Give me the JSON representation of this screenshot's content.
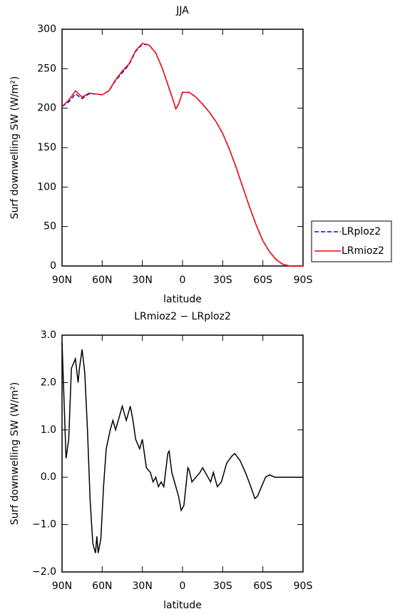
{
  "chart_data": [
    {
      "type": "line",
      "title": "JJA",
      "x_label": "latitude",
      "y_label": "Surf downwelling SW (W/m²)",
      "x": [
        90,
        85,
        80,
        75,
        70,
        65,
        60,
        55,
        50,
        45,
        40,
        35,
        30,
        25,
        20,
        15,
        10,
        7,
        5,
        3,
        0,
        -5,
        -10,
        -15,
        -20,
        -25,
        -30,
        -35,
        -40,
        -45,
        -50,
        -55,
        -60,
        -65,
        -70,
        -75,
        -80,
        -85,
        -90
      ],
      "series": [
        {
          "name": "LRploz2",
          "color": "#0000ff",
          "dashed": true,
          "values": [
            202,
            208,
            218,
            212,
            218,
            218,
            217,
            222,
            235,
            245,
            255,
            272,
            281,
            280,
            270,
            250,
            225,
            210,
            199,
            205,
            220,
            220,
            214,
            205,
            195,
            183,
            168,
            148,
            125,
            100,
            75,
            52,
            32,
            18,
            8,
            2,
            0,
            0,
            0
          ]
        },
        {
          "name": "LRmioz2",
          "color": "#ff0000",
          "dashed": false,
          "values": [
            202,
            210,
            222,
            214,
            219,
            218,
            217,
            222,
            236,
            247,
            256,
            273,
            282,
            280,
            270,
            250,
            225,
            210,
            199,
            205,
            220,
            220,
            214,
            205,
            195,
            183,
            168,
            148,
            125,
            100,
            75,
            52,
            32,
            18,
            8,
            2,
            0,
            0,
            0
          ]
        }
      ],
      "xlim": [
        90,
        -90
      ],
      "xticks": [
        {
          "value": 90,
          "label": "90N"
        },
        {
          "value": 60,
          "label": "60N"
        },
        {
          "value": 30,
          "label": "30N"
        },
        0,
        {
          "value": -30,
          "label": "30S"
        },
        {
          "value": -60,
          "label": "60S"
        },
        {
          "value": -90,
          "label": "90S"
        }
      ],
      "ylim": [
        0,
        300
      ],
      "yticks": [
        0,
        50,
        100,
        150,
        200,
        250,
        300
      ],
      "legend": "outside-right"
    },
    {
      "type": "line",
      "title": "LRmioz2 − LRploz2",
      "x_label": "latitude",
      "y_label": "Surf downwelling SW (W/m²)",
      "x": [
        90,
        87,
        85,
        83,
        80,
        78,
        77,
        75,
        73,
        71,
        69,
        67,
        65,
        64,
        63,
        61,
        59,
        57,
        54,
        52,
        50,
        47,
        45,
        42,
        39,
        37,
        35,
        32,
        30,
        27,
        24,
        22,
        20,
        18,
        16,
        14,
        11,
        10,
        8,
        6,
        3,
        1,
        -1,
        -4,
        -5,
        -7,
        -10,
        -13,
        -15,
        -18,
        -21,
        -23,
        -26,
        -29,
        -33,
        -37,
        -39,
        -43,
        -47,
        -51,
        -54,
        -56,
        -59,
        -62,
        -65,
        -69,
        -77,
        -90
      ],
      "series": [
        {
          "name": "LRmioz2 − LRploz2",
          "color": "#000000",
          "dashed": false,
          "values": [
            2.85,
            0.4,
            0.8,
            2.3,
            2.5,
            2.0,
            2.3,
            2.7,
            2.2,
            1.0,
            -0.5,
            -1.4,
            -1.6,
            -1.25,
            -1.6,
            -1.3,
            -0.2,
            0.6,
            1.0,
            1.2,
            1.0,
            1.3,
            1.5,
            1.2,
            1.5,
            1.2,
            0.8,
            0.6,
            0.8,
            0.2,
            0.1,
            -0.1,
            0.0,
            -0.2,
            -0.1,
            -0.2,
            0.5,
            0.55,
            0.1,
            -0.1,
            -0.4,
            -0.7,
            -0.6,
            0.2,
            0.15,
            -0.1,
            0.0,
            0.1,
            0.2,
            0.05,
            -0.1,
            0.1,
            -0.2,
            -0.1,
            0.3,
            0.45,
            0.5,
            0.35,
            0.1,
            -0.2,
            -0.45,
            -0.4,
            -0.2,
            0.0,
            0.05,
            0.0,
            0.0,
            0.0
          ]
        }
      ],
      "xlim": [
        90,
        -90
      ],
      "xticks": [
        {
          "value": 90,
          "label": "90N"
        },
        {
          "value": 60,
          "label": "60N"
        },
        {
          "value": 30,
          "label": "30N"
        },
        0,
        {
          "value": -30,
          "label": "30S"
        },
        {
          "value": -60,
          "label": "60S"
        },
        {
          "value": -90,
          "label": "90S"
        }
      ],
      "ylim": [
        -2,
        3
      ],
      "yticks": [
        {
          "value": -2,
          "label": "−2.0"
        },
        {
          "value": -1,
          "label": "−1.0"
        },
        {
          "value": 0,
          "label": "0.0"
        },
        {
          "value": 1,
          "label": "1.0"
        },
        {
          "value": 2,
          "label": "2.0"
        },
        {
          "value": 3,
          "label": "3.0"
        }
      ]
    }
  ]
}
